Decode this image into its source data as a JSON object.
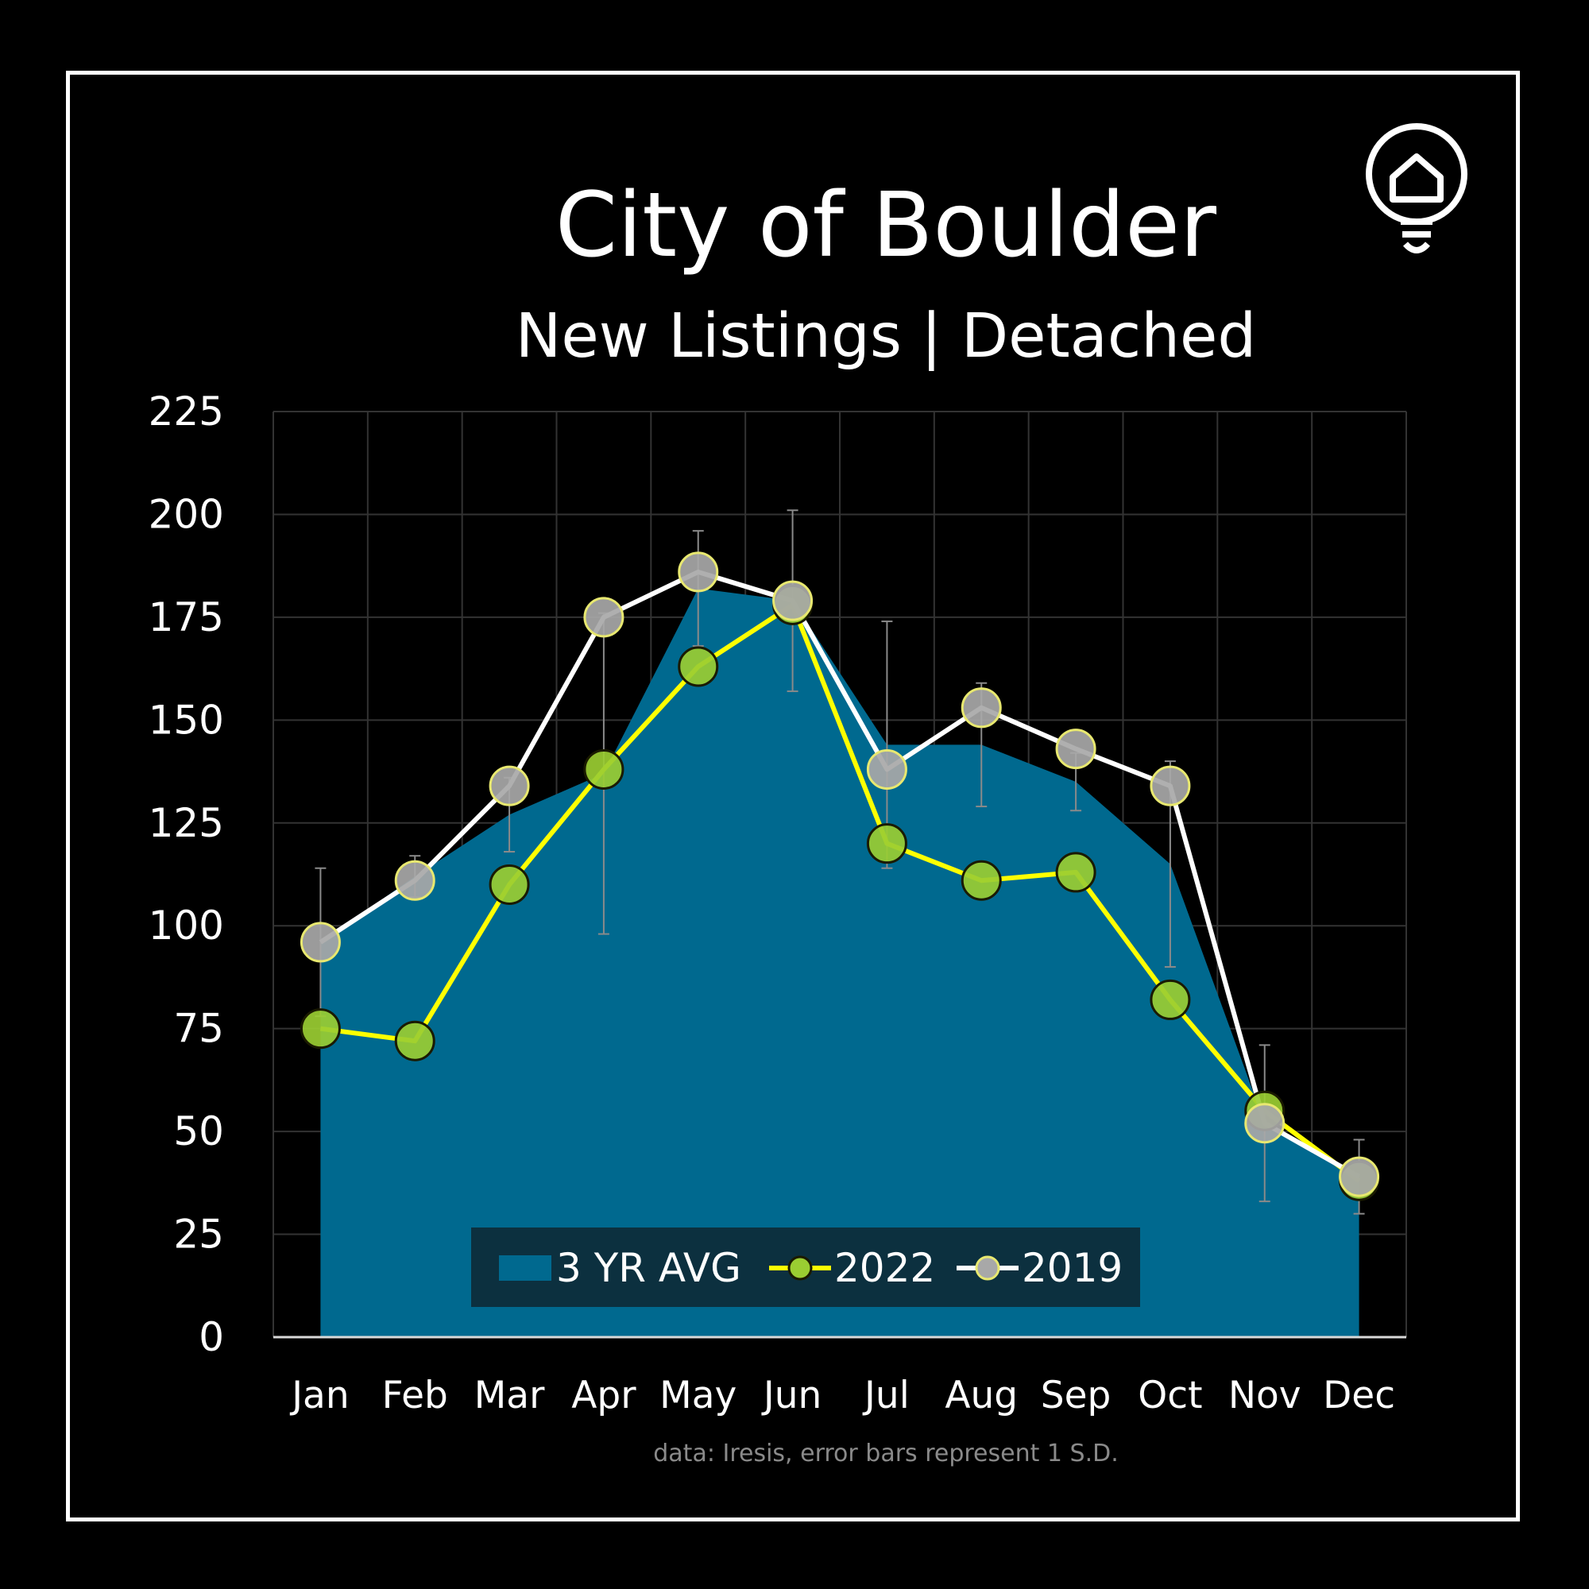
{
  "title": "City of Boulder",
  "subtitle": "New Listings | Detached",
  "footnote": "data: Iresis,  error bars represent 1 S.D.",
  "logo_icon": "lightbulb-house-icon",
  "colors": {
    "background": "#000000",
    "area": "#00698f",
    "line_2022": "#ffff00",
    "marker_2022": "#9acd32",
    "line_2019": "#ffffff",
    "marker_2019": "#a8a8a8",
    "grid": "#333333"
  },
  "chart_data": {
    "type": "area",
    "title": "City of Boulder",
    "subtitle": "New Listings | Detached",
    "categories": [
      "Jan",
      "Feb",
      "Mar",
      "Apr",
      "May",
      "Jun",
      "Jul",
      "Aug",
      "Sep",
      "Oct",
      "Nov",
      "Dec"
    ],
    "ylim": [
      0,
      225
    ],
    "yticks": [
      0,
      25,
      50,
      75,
      100,
      125,
      150,
      175,
      200,
      225
    ],
    "grid": true,
    "legend_position": "bottom-center",
    "series": [
      {
        "name": "3 YR AVG",
        "kind": "area",
        "values": [
          96,
          112,
          127,
          137,
          182,
          179,
          144,
          144,
          135,
          115,
          52,
          39
        ],
        "error_sd": [
          18,
          5,
          9,
          39,
          14,
          22,
          30,
          15,
          7,
          25,
          19,
          9
        ]
      },
      {
        "name": "2022",
        "kind": "line",
        "values": [
          75,
          72,
          110,
          138,
          163,
          178,
          120,
          111,
          113,
          82,
          55,
          38
        ]
      },
      {
        "name": "2019",
        "kind": "line",
        "values": [
          96,
          111,
          134,
          175,
          186,
          179,
          138,
          153,
          143,
          134,
          52,
          39
        ]
      }
    ]
  }
}
